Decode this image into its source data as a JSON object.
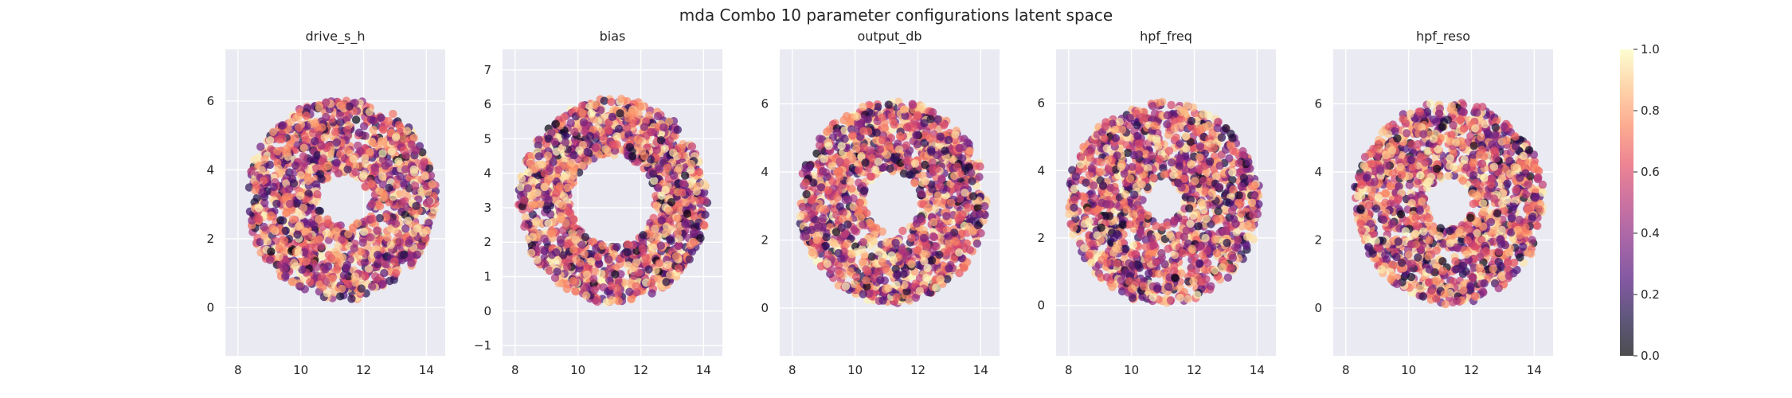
{
  "figure": {
    "title": "mda Combo 10 parameter configurations latent space"
  },
  "chart_data": {
    "type": "scatter",
    "colormap": "magma",
    "alpha": 0.7,
    "grid": true,
    "background_color": "#eaeaf2",
    "x_ticks": [
      8,
      10,
      12,
      14
    ],
    "colorbar": {
      "range": [
        0.0,
        1.0
      ],
      "ticks": [
        "0.0",
        "0.2",
        "0.4",
        "0.6",
        "0.8",
        "1.0"
      ]
    },
    "panels": [
      {
        "title": "drive_s_h",
        "xlim": [
          7.6,
          14.6
        ],
        "ylim": [
          -1.4,
          7.5
        ],
        "y_ticks": [
          0,
          2,
          4,
          6
        ],
        "cluster": {
          "center": [
            11.3,
            3.15
          ],
          "rx": 3.0,
          "ry": 2.9,
          "inner_hole": 0.25,
          "points": 1500
        }
      },
      {
        "title": "bias",
        "xlim": [
          7.6,
          14.6
        ],
        "ylim": [
          -1.3,
          7.6
        ],
        "y_ticks": [
          -1,
          0,
          1,
          2,
          3,
          4,
          5,
          6,
          7
        ],
        "cluster": {
          "center": [
            11.1,
            3.2
          ],
          "rx": 3.0,
          "ry": 2.95,
          "inner_hole": 0.45,
          "points": 1500
        }
      },
      {
        "title": "output_db",
        "xlim": [
          7.6,
          14.6
        ],
        "ylim": [
          -1.4,
          7.6
        ],
        "y_ticks": [
          0,
          2,
          4,
          6
        ],
        "cluster": {
          "center": [
            11.2,
            3.1
          ],
          "rx": 3.0,
          "ry": 2.95,
          "inner_hole": 0.3,
          "points": 1500
        }
      },
      {
        "title": "hpf_freq",
        "xlim": [
          7.6,
          14.6
        ],
        "ylim": [
          -1.5,
          7.6
        ],
        "y_ticks": [
          0,
          2,
          4,
          6
        ],
        "cluster": {
          "center": [
            11.0,
            3.05
          ],
          "rx": 3.05,
          "ry": 3.0,
          "inner_hole": 0.2,
          "points": 1500
        }
      },
      {
        "title": "hpf_reso",
        "xlim": [
          7.6,
          14.6
        ],
        "ylim": [
          -1.4,
          7.6
        ],
        "y_ticks": [
          0,
          2,
          4,
          6
        ],
        "cluster": {
          "center": [
            11.3,
            3.1
          ],
          "rx": 3.0,
          "ry": 2.95,
          "inner_hole": 0.25,
          "points": 1500
        }
      }
    ]
  }
}
